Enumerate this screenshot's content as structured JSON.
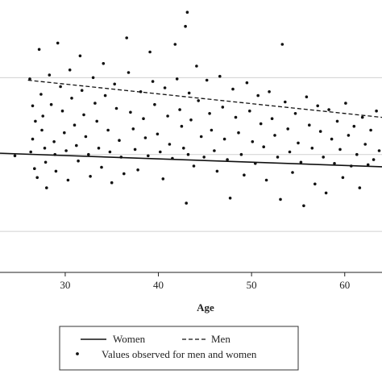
{
  "chart_data": {
    "type": "scatter",
    "xlabel": "Age",
    "ylabel": "",
    "xlim": [
      23,
      64
    ],
    "ylim": [
      0,
      10
    ],
    "x_ticks": [
      "30",
      "40",
      "50",
      "60"
    ],
    "y_gridlines": [
      1.6,
      4.6,
      7.6
    ],
    "grid": true,
    "legend_position": "bottom",
    "legend": {
      "women": "Women",
      "men": "Men",
      "points": "Values observed for men and women"
    },
    "series": [
      {
        "name": "Women",
        "kind": "regression-line",
        "style": "solid",
        "x": [
          23,
          64
        ],
        "y": [
          4.65,
          4.12
        ]
      },
      {
        "name": "Men",
        "kind": "regression-line",
        "style": "dashed",
        "x": [
          26,
          64
        ],
        "y": [
          7.5,
          6.05
        ]
      },
      {
        "name": "Values observed for men and women",
        "kind": "points",
        "points": [
          [
            24.6,
            4.55
          ],
          [
            26.2,
            7.55
          ],
          [
            26.5,
            6.5
          ],
          [
            26.8,
            5.9
          ],
          [
            26.5,
            5.2
          ],
          [
            26.3,
            4.7
          ],
          [
            26.7,
            4.05
          ],
          [
            27.0,
            3.7
          ],
          [
            27.2,
            8.7
          ],
          [
            27.4,
            6.95
          ],
          [
            27.6,
            6.1
          ],
          [
            27.5,
            5.55
          ],
          [
            27.8,
            4.85
          ],
          [
            27.9,
            4.3
          ],
          [
            28.0,
            3.3
          ],
          [
            28.3,
            7.7
          ],
          [
            28.5,
            6.55
          ],
          [
            28.8,
            5.1
          ],
          [
            28.9,
            4.6
          ],
          [
            29.0,
            3.95
          ],
          [
            29.2,
            8.95
          ],
          [
            29.5,
            7.25
          ],
          [
            29.7,
            6.3
          ],
          [
            29.9,
            5.45
          ],
          [
            30.1,
            4.75
          ],
          [
            30.3,
            3.6
          ],
          [
            30.5,
            7.9
          ],
          [
            30.7,
            6.8
          ],
          [
            31.0,
            5.75
          ],
          [
            31.2,
            4.95
          ],
          [
            31.4,
            4.35
          ],
          [
            31.6,
            8.45
          ],
          [
            31.8,
            7.1
          ],
          [
            32.0,
            6.15
          ],
          [
            32.2,
            5.3
          ],
          [
            32.5,
            4.6
          ],
          [
            32.7,
            3.75
          ],
          [
            33.0,
            7.6
          ],
          [
            33.2,
            6.6
          ],
          [
            33.4,
            5.9
          ],
          [
            33.6,
            4.85
          ],
          [
            33.9,
            4.1
          ],
          [
            34.1,
            8.15
          ],
          [
            34.3,
            6.9
          ],
          [
            34.6,
            5.55
          ],
          [
            34.8,
            4.7
          ],
          [
            35.0,
            3.5
          ],
          [
            35.3,
            7.35
          ],
          [
            35.5,
            6.4
          ],
          [
            35.8,
            5.15
          ],
          [
            36.0,
            4.5
          ],
          [
            36.3,
            3.85
          ],
          [
            36.6,
            9.15
          ],
          [
            36.8,
            7.8
          ],
          [
            37.0,
            6.25
          ],
          [
            37.3,
            5.6
          ],
          [
            37.5,
            4.8
          ],
          [
            37.8,
            4.0
          ],
          [
            38.1,
            7.05
          ],
          [
            38.4,
            6.0
          ],
          [
            38.6,
            5.25
          ],
          [
            38.9,
            4.55
          ],
          [
            39.1,
            8.6
          ],
          [
            39.4,
            7.45
          ],
          [
            39.6,
            6.55
          ],
          [
            39.9,
            5.4
          ],
          [
            40.2,
            4.7
          ],
          [
            40.5,
            3.65
          ],
          [
            40.7,
            7.2
          ],
          [
            41.0,
            6.1
          ],
          [
            41.2,
            5.0
          ],
          [
            41.5,
            4.45
          ],
          [
            41.8,
            8.9
          ],
          [
            42.0,
            7.55
          ],
          [
            42.3,
            6.35
          ],
          [
            42.5,
            5.7
          ],
          [
            42.7,
            4.85
          ],
          [
            42.9,
            9.6
          ],
          [
            43.1,
            10.15
          ],
          [
            43.3,
            7.0
          ],
          [
            43.5,
            5.95
          ],
          [
            43.2,
            4.6
          ],
          [
            43.0,
            2.7
          ],
          [
            43.8,
            4.15
          ],
          [
            44.1,
            8.05
          ],
          [
            44.3,
            6.7
          ],
          [
            44.6,
            5.3
          ],
          [
            44.9,
            4.5
          ],
          [
            45.2,
            7.5
          ],
          [
            45.5,
            6.2
          ],
          [
            45.7,
            5.55
          ],
          [
            46.0,
            4.75
          ],
          [
            46.3,
            3.95
          ],
          [
            46.6,
            7.65
          ],
          [
            46.9,
            6.45
          ],
          [
            47.1,
            5.2
          ],
          [
            47.4,
            4.4
          ],
          [
            47.7,
            2.9
          ],
          [
            48.0,
            7.15
          ],
          [
            48.3,
            6.05
          ],
          [
            48.6,
            5.45
          ],
          [
            48.9,
            4.6
          ],
          [
            49.2,
            3.8
          ],
          [
            49.5,
            7.4
          ],
          [
            49.8,
            6.3
          ],
          [
            50.1,
            5.1
          ],
          [
            50.4,
            4.25
          ],
          [
            50.7,
            6.9
          ],
          [
            51.0,
            5.8
          ],
          [
            51.3,
            4.9
          ],
          [
            51.6,
            3.6
          ],
          [
            51.9,
            7.05
          ],
          [
            52.2,
            6.0
          ],
          [
            52.5,
            5.35
          ],
          [
            52.8,
            4.5
          ],
          [
            53.1,
            2.85
          ],
          [
            53.3,
            8.9
          ],
          [
            53.6,
            6.65
          ],
          [
            53.9,
            5.6
          ],
          [
            54.1,
            4.7
          ],
          [
            54.4,
            3.9
          ],
          [
            54.7,
            6.2
          ],
          [
            55.0,
            5.05
          ],
          [
            55.3,
            4.3
          ],
          [
            55.6,
            2.6
          ],
          [
            55.9,
            6.85
          ],
          [
            56.2,
            5.75
          ],
          [
            56.5,
            4.85
          ],
          [
            56.8,
            3.45
          ],
          [
            57.1,
            6.5
          ],
          [
            57.4,
            5.5
          ],
          [
            57.7,
            4.5
          ],
          [
            58.0,
            3.1
          ],
          [
            58.3,
            6.35
          ],
          [
            58.6,
            5.2
          ],
          [
            58.9,
            4.25
          ],
          [
            59.2,
            5.9
          ],
          [
            59.5,
            4.8
          ],
          [
            59.8,
            3.7
          ],
          [
            60.1,
            6.6
          ],
          [
            60.4,
            5.35
          ],
          [
            60.7,
            4.15
          ],
          [
            61.0,
            5.7
          ],
          [
            61.3,
            4.6
          ],
          [
            61.6,
            3.3
          ],
          [
            61.9,
            6.05
          ],
          [
            62.2,
            5.0
          ],
          [
            62.5,
            4.2
          ],
          [
            62.8,
            5.55
          ],
          [
            63.1,
            4.4
          ],
          [
            63.4,
            6.3
          ],
          [
            63.7,
            4.75
          ]
        ]
      }
    ]
  }
}
